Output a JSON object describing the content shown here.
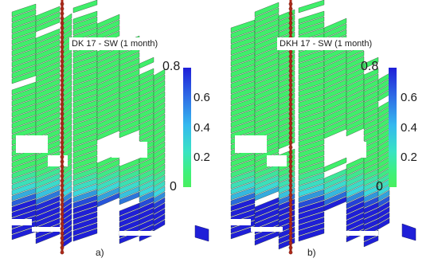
{
  "panels": [
    {
      "title": "DK 17 - SW (1 month)",
      "label": "a)",
      "colorbar": {
        "max": "0.8",
        "t06": "0.6",
        "t04": "0.4",
        "t02": "0.2",
        "min": "0"
      }
    },
    {
      "title": "DKH 17 - SW (1 month)",
      "label": "b)",
      "colorbar": {
        "max": "0.8",
        "t06": "0.6",
        "t04": "0.4",
        "t02": "0.2",
        "min": "0"
      }
    }
  ],
  "colors": {
    "low": "#3fef6a",
    "mid": "#3ad8e0",
    "high": "#1f1fd8",
    "well": "#b02a1a"
  }
}
